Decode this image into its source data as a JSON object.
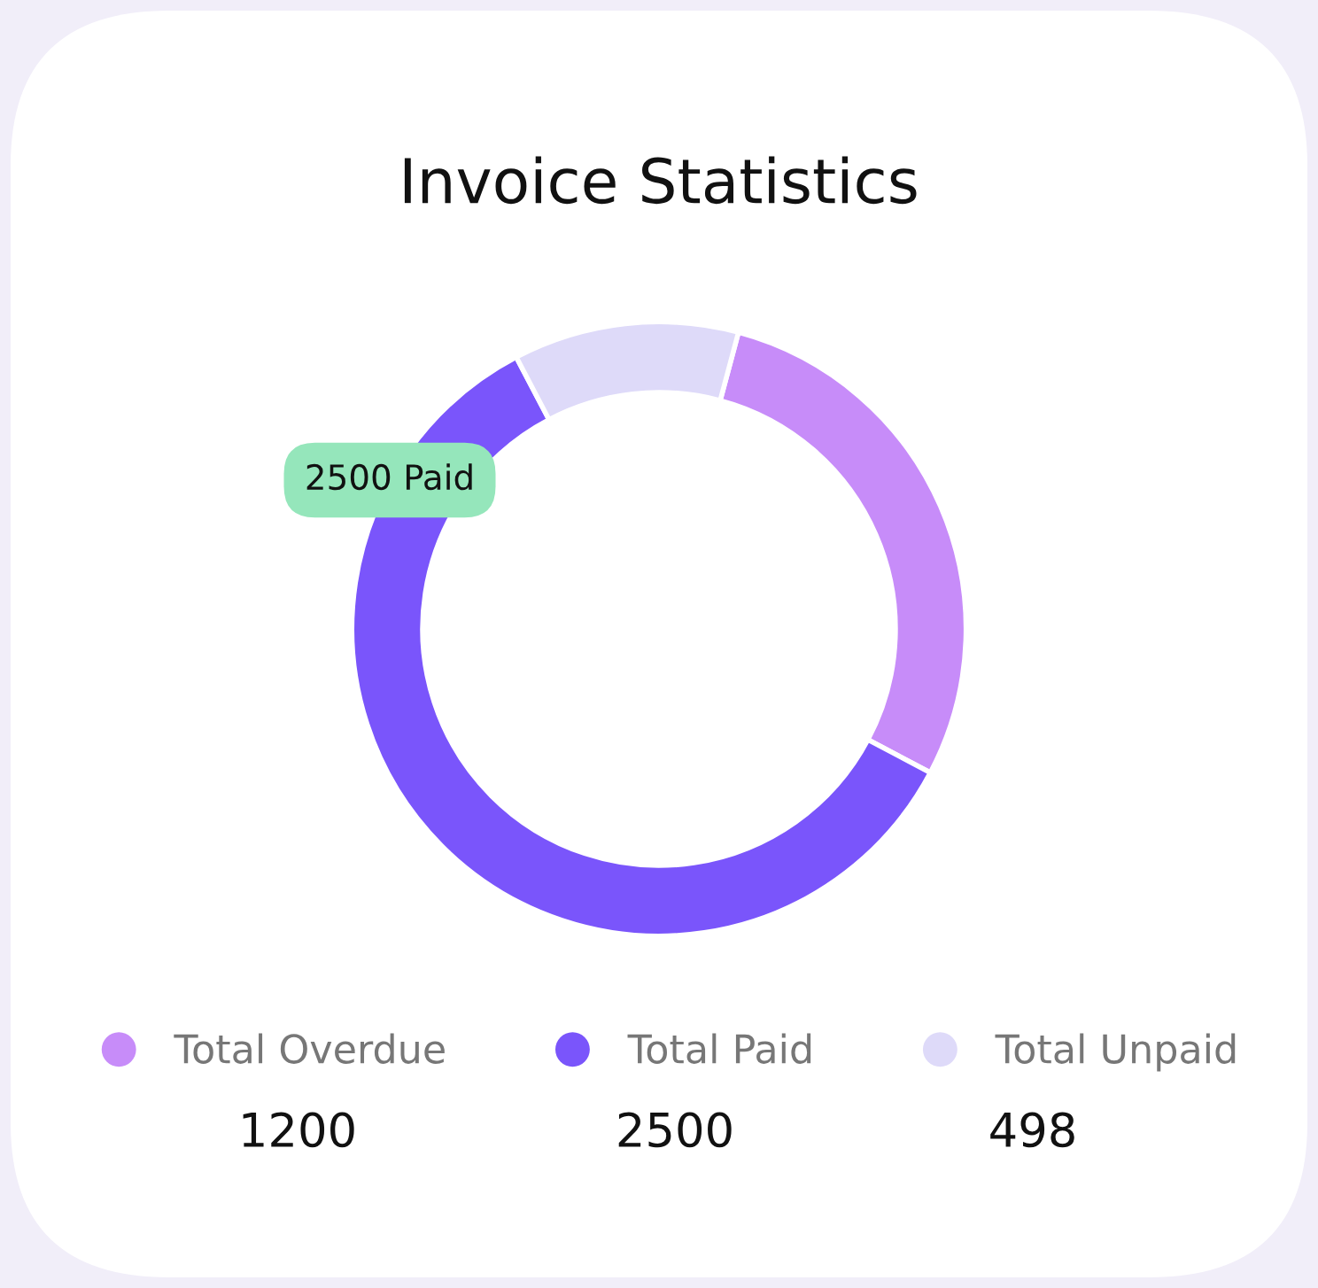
{
  "chart_data": {
    "type": "donut",
    "title": "Invoice Statistics",
    "categories": [
      "Total Overdue",
      "Total Paid",
      "Total Unpaid"
    ],
    "values": [
      1200,
      2500,
      498
    ],
    "colors": [
      "#c78cf9",
      "#7a55fb",
      "#dedaf9"
    ],
    "data_labels": true,
    "legend": "bottom",
    "annotations": [
      "2500 Paid"
    ]
  }
}
